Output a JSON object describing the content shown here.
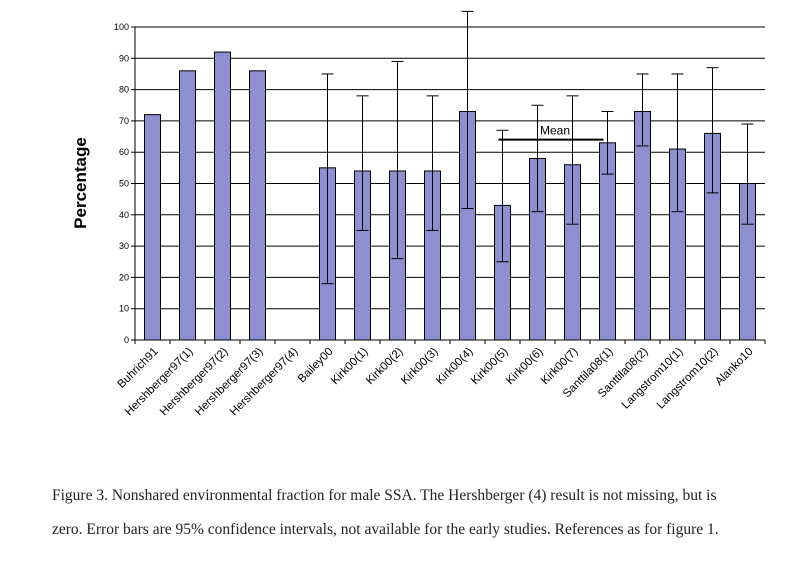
{
  "chart_data": {
    "type": "bar",
    "ylabel": "Percentage",
    "ylim": [
      0,
      100
    ],
    "yticks": [
      0,
      10,
      20,
      30,
      40,
      50,
      60,
      70,
      80,
      90,
      100
    ],
    "grid": true,
    "bar_color": "#8c8fd0",
    "categories": [
      "Buhrich91",
      "Hershberger97(1)",
      "Hershberger97(2)",
      "Hershberger97(3)",
      "Hershberger97(4)",
      "Bailey00",
      "Kirk00(1)",
      "Kirk00(2)",
      "Kirk00(3)",
      "Kirk00(4)",
      "Kirk00(5)",
      "Kirk00(6)",
      "Kirk00(7)",
      "Santtila08(1)",
      "Santtila08(2)",
      "Langstrom10(1)",
      "Langstrom10(2)",
      "Alanko10"
    ],
    "values": [
      72,
      86,
      92,
      86,
      0,
      55,
      54,
      54,
      54,
      73,
      43,
      58,
      56,
      63,
      73,
      61,
      66,
      50
    ],
    "ci_low": [
      null,
      null,
      null,
      null,
      null,
      18,
      35,
      26,
      35,
      42,
      25,
      41,
      37,
      53,
      62,
      41,
      47,
      37
    ],
    "ci_high": [
      null,
      null,
      null,
      null,
      null,
      85,
      78,
      89,
      78,
      105,
      67,
      75,
      78,
      73,
      85,
      85,
      87,
      69
    ],
    "mean": {
      "label": "Mean",
      "value": 64,
      "from_index": 10,
      "to_index": 13
    }
  },
  "caption": {
    "line1": "Figure 3. Nonshared environmental fraction for male SSA. The Hershberger (4) result is not missing, but is",
    "line2": "zero. Error bars are 95% confidence intervals, not available for the early studies. References as for figure 1."
  }
}
